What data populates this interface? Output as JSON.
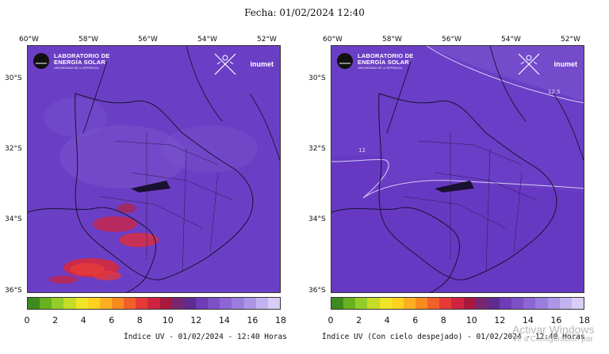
{
  "title": "Fecha: 01/02/2024 12:40",
  "longitudes": [
    "60°W",
    "58°W",
    "56°W",
    "54°W",
    "52°W"
  ],
  "latitudes": [
    "30°S",
    "32°S",
    "34°S",
    "36°S"
  ],
  "colorbar_ticks": [
    "0",
    "2",
    "4",
    "6",
    "8",
    "10",
    "12",
    "14",
    "16",
    "18"
  ],
  "colorbar_colors": [
    "#3f8a1c",
    "#69b11f",
    "#94cc2a",
    "#c5dc26",
    "#efe426",
    "#fdd21f",
    "#fbb022",
    "#f88a1f",
    "#f1602a",
    "#e73938",
    "#cf2341",
    "#a8183f",
    "#7a2670",
    "#5f2b8f",
    "#6f3bb6",
    "#7d50c8",
    "#8c66d2",
    "#9b7edc",
    "#ac96e6",
    "#c2b2ef",
    "#d9cdf7"
  ],
  "left_panel": {
    "caption": "Índice UV - 01/02/2024 - 12:40 Horas"
  },
  "right_panel": {
    "caption": "Índice UV (Con cielo despejado) - 01/02/2024 - 12:40 Horas",
    "contour_labels": [
      "12.5",
      "12"
    ]
  },
  "logo": {
    "line1": "LABORATORIO DE",
    "line2": "ENERGÍA SOLAR",
    "sub": "UNIVERSIDAD DE LA REPÚBLICA"
  },
  "agency": "inumet",
  "watermark": {
    "line1": "Activar Windows",
    "line2": "Ve a Configuración par"
  }
}
